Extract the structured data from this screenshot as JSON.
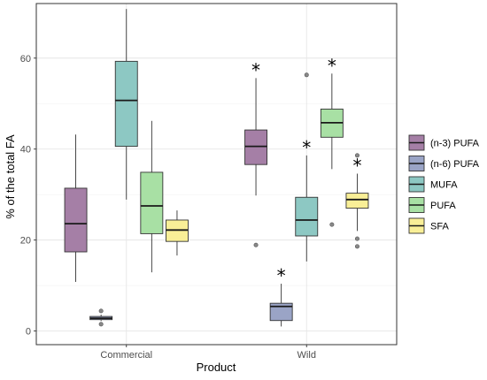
{
  "chart_data": {
    "type": "boxplot",
    "xlabel": "Product",
    "ylabel": "% of the total FA",
    "categories": [
      "Commercial",
      "Wild"
    ],
    "ylim": [
      -3,
      72
    ],
    "yticks": [
      0,
      20,
      40,
      60
    ],
    "grid": true,
    "legend_position": "right",
    "significance_marker": "*",
    "series": [
      {
        "name": "(n-3) PUFA",
        "color": "#a57fa6",
        "boxes": [
          {
            "category": "Commercial",
            "lower_whisker": 10.8,
            "q1": 17.4,
            "median": 23.6,
            "q3": 31.4,
            "upper_whisker": 43.2,
            "outliers": [],
            "significant": false
          },
          {
            "category": "Wild",
            "lower_whisker": 29.8,
            "q1": 36.6,
            "median": 40.6,
            "q3": 44.2,
            "upper_whisker": 55.6,
            "outliers": [
              18.9
            ],
            "significant": true
          }
        ]
      },
      {
        "name": "(n-6) PUFA",
        "color": "#9aa4c6",
        "boxes": [
          {
            "category": "Commercial",
            "lower_whisker": 2.2,
            "q1": 2.5,
            "median": 2.8,
            "q3": 3.2,
            "upper_whisker": 3.6,
            "outliers": [
              4.4,
              1.5
            ],
            "significant": false
          },
          {
            "category": "Wild",
            "lower_whisker": 1.0,
            "q1": 2.3,
            "median": 5.4,
            "q3": 6.1,
            "upper_whisker": 10.4,
            "outliers": [],
            "significant": true
          }
        ]
      },
      {
        "name": "MUFA",
        "color": "#8dc8c3",
        "boxes": [
          {
            "category": "Commercial",
            "lower_whisker": 28.9,
            "q1": 40.6,
            "median": 50.7,
            "q3": 59.3,
            "upper_whisker": 70.8,
            "outliers": [],
            "significant": false
          },
          {
            "category": "Wild",
            "lower_whisker": 15.3,
            "q1": 20.9,
            "median": 24.4,
            "q3": 29.4,
            "upper_whisker": 38.6,
            "outliers": [
              56.3
            ],
            "significant": true
          }
        ]
      },
      {
        "name": "PUFA",
        "color": "#a8e0a4",
        "boxes": [
          {
            "category": "Commercial",
            "lower_whisker": 12.9,
            "q1": 21.4,
            "median": 27.5,
            "q3": 34.9,
            "upper_whisker": 46.2,
            "outliers": [],
            "significant": false
          },
          {
            "category": "Wild",
            "lower_whisker": 35.6,
            "q1": 42.6,
            "median": 45.8,
            "q3": 48.8,
            "upper_whisker": 56.6,
            "outliers": [
              23.4
            ],
            "significant": true
          }
        ]
      },
      {
        "name": "SFA",
        "color": "#f9ef97",
        "boxes": [
          {
            "category": "Commercial",
            "lower_whisker": 16.6,
            "q1": 19.7,
            "median": 22.2,
            "q3": 24.4,
            "upper_whisker": 26.5,
            "outliers": [],
            "significant": false
          },
          {
            "category": "Wild",
            "lower_whisker": 22.0,
            "q1": 27.0,
            "median": 28.9,
            "q3": 30.3,
            "upper_whisker": 34.6,
            "outliers": [
              38.6,
              20.3,
              18.6
            ],
            "significant": true
          }
        ]
      }
    ]
  }
}
